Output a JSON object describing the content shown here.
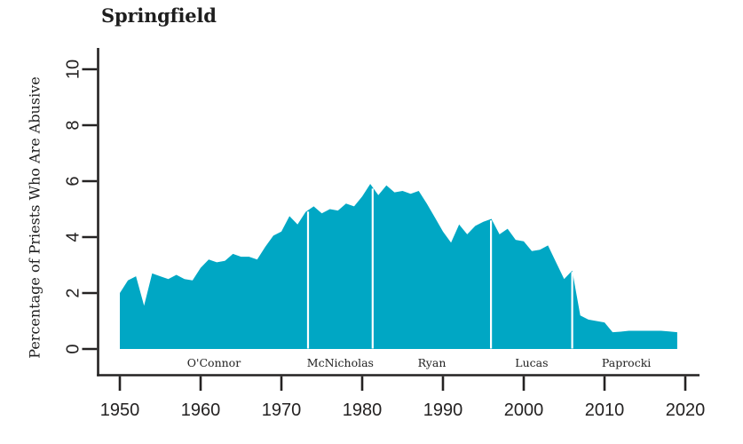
{
  "page": {
    "background": "#ffffff"
  },
  "chart_data": {
    "type": "area",
    "title": "Springfield",
    "ylabel": "Percentage of Priests Who Are Abusive",
    "xlabel": "",
    "series_name": "Percentage of priests who are abusive",
    "x": [
      1950,
      1951,
      1952,
      1953,
      1954,
      1955,
      1956,
      1957,
      1958,
      1959,
      1960,
      1961,
      1962,
      1963,
      1964,
      1965,
      1966,
      1967,
      1968,
      1969,
      1970,
      1971,
      1972,
      1973,
      1974,
      1975,
      1976,
      1977,
      1978,
      1979,
      1980,
      1981,
      1982,
      1983,
      1984,
      1985,
      1986,
      1987,
      1988,
      1989,
      1990,
      1991,
      1992,
      1993,
      1994,
      1995,
      1996,
      1997,
      1998,
      1999,
      2000,
      2001,
      2002,
      2003,
      2004,
      2005,
      2006,
      2007,
      2008,
      2009,
      2010,
      2011,
      2012,
      2013,
      2014,
      2015,
      2016,
      2017,
      2018,
      2019
    ],
    "values": [
      2.0,
      2.45,
      2.6,
      1.55,
      2.7,
      2.6,
      2.5,
      2.65,
      2.5,
      2.45,
      2.9,
      3.2,
      3.1,
      3.15,
      3.4,
      3.3,
      3.3,
      3.2,
      3.65,
      4.05,
      4.2,
      4.75,
      4.45,
      4.9,
      5.1,
      4.85,
      5.0,
      4.95,
      5.2,
      5.1,
      5.45,
      5.9,
      5.5,
      5.85,
      5.6,
      5.65,
      5.55,
      5.65,
      5.2,
      4.7,
      4.2,
      3.8,
      4.45,
      4.1,
      4.4,
      4.55,
      4.65,
      4.1,
      4.3,
      3.9,
      3.85,
      3.5,
      3.55,
      3.7,
      3.1,
      2.5,
      2.8,
      1.2,
      1.05,
      1.0,
      0.95,
      0.6,
      0.62,
      0.65,
      0.65,
      0.65,
      0.65,
      0.65,
      0.63,
      0.6
    ],
    "xticks": [
      1950,
      1960,
      1970,
      1980,
      1990,
      2000,
      2010,
      2020
    ],
    "yticks": [
      0,
      2,
      4,
      6,
      8,
      10
    ],
    "xlim": [
      1950,
      2020
    ],
    "ylim": [
      0,
      10
    ],
    "grid": false,
    "legend": "none",
    "dividers": [
      1973.3,
      1981.3,
      1995.95,
      2006
    ],
    "bishops": [
      {
        "label": "O'Connor",
        "start": 1950,
        "end": 1973.3
      },
      {
        "label": "McNicholas",
        "start": 1973.3,
        "end": 1981.3
      },
      {
        "label": "Ryan",
        "start": 1981.3,
        "end": 1995.95
      },
      {
        "label": "Lucas",
        "start": 1995.95,
        "end": 2006
      },
      {
        "label": "Paprocki",
        "start": 2006,
        "end": 2019.4
      }
    ],
    "colors": {
      "area": "#00a7c4",
      "axis": "#242222",
      "divider": "#ffffff",
      "text": "#1e1e1e"
    }
  }
}
